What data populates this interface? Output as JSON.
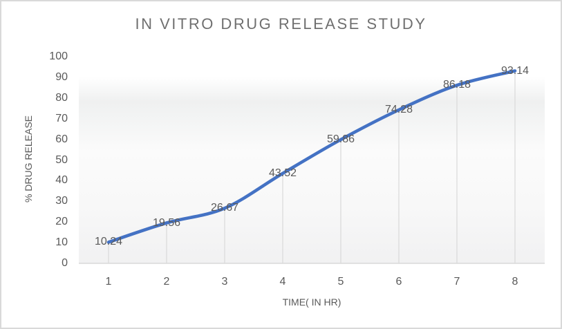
{
  "window": {
    "background": "#ffffff",
    "border_color": "#d9d9d9"
  },
  "chart_data": {
    "type": "line",
    "title": "IN VITRO DRUG RELEASE STUDY",
    "xlabel": "TIME( IN HR)",
    "ylabel": "% DRUG RELEASE",
    "categories": [
      "1",
      "2",
      "3",
      "4",
      "5",
      "6",
      "7",
      "8"
    ],
    "series": [
      {
        "name": "% drug release",
        "values": [
          10.24,
          19.56,
          26.67,
          43.52,
          59.86,
          74.28,
          86.18,
          93.14
        ]
      }
    ],
    "data_labels": [
      "10.24",
      "19.56",
      "26.67",
      "43.52",
      "59.86",
      "74.28",
      "86.18",
      "93.14"
    ],
    "ylim": [
      0,
      100
    ],
    "yticks": [
      0,
      10,
      20,
      30,
      40,
      50,
      60,
      70,
      80,
      90,
      100
    ],
    "grid": "vertical droplines at data points only, no horizontal gridlines",
    "legend_position": "none",
    "line_smoothing": true,
    "colors": {
      "line": "#4472C4",
      "dropline": "#d9d9d9",
      "axis_line": "#d9d9d9",
      "tick_text": "#595959",
      "label_text": "#595959",
      "title_text": "#6f6f6f"
    }
  }
}
